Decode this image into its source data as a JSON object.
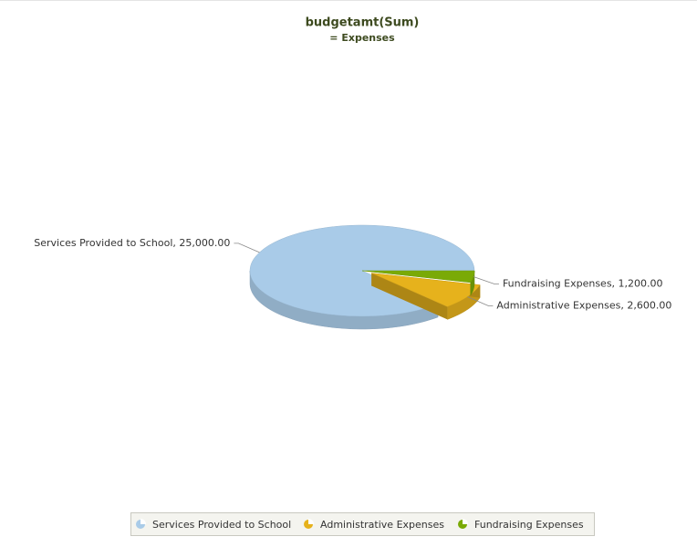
{
  "chart_data": {
    "type": "pie",
    "title": "budgetamt(Sum)",
    "subtitle": "= Expenses",
    "categories": [
      "Services Provided to School",
      "Administrative Expenses",
      "Fundraising Expenses"
    ],
    "values": [
      25000,
      2600,
      1200
    ],
    "value_labels": [
      "Services Provided to School, 25,000.00",
      "Administrative Expenses, 2,600.00",
      "Fundraising Expenses, 1,200.00"
    ],
    "colors": [
      "#a9cbe8",
      "#e6b21c",
      "#7aaa06"
    ],
    "legend": "bottom"
  }
}
